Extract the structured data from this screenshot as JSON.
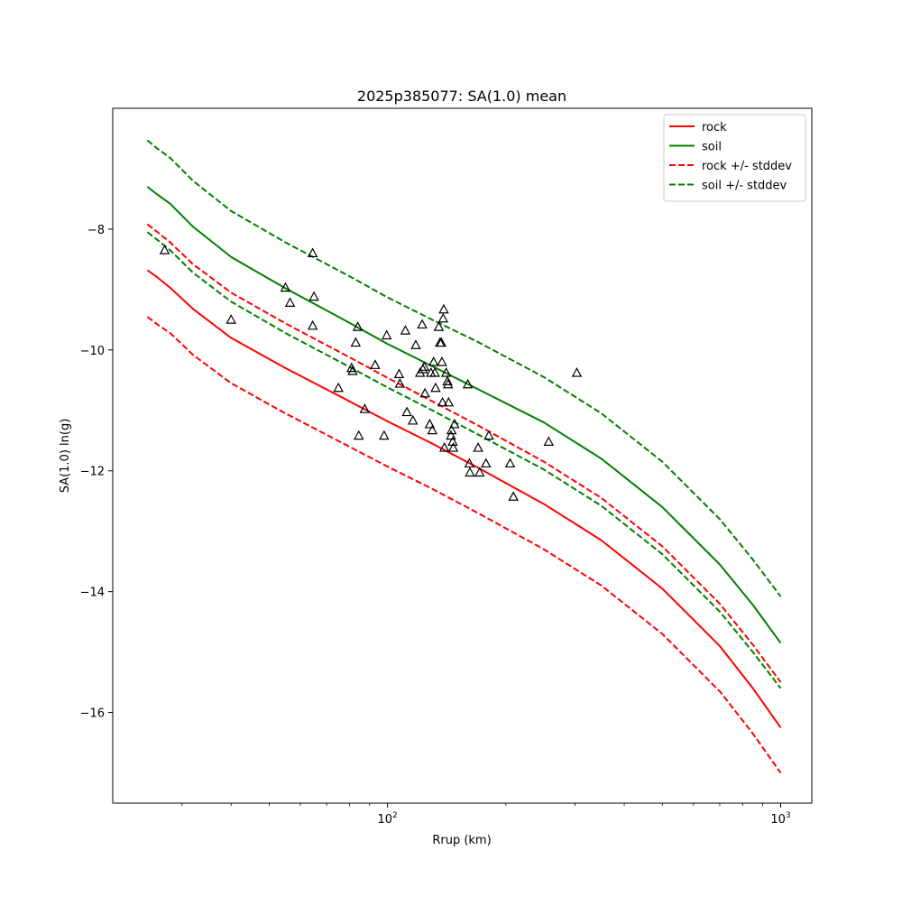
{
  "chart_data": {
    "type": "line",
    "title": "2025p385077: SA(1.0) mean",
    "xlabel": "Rrup (km)",
    "ylabel": "SA(1.0) ln(g)",
    "xscale": "log",
    "xlim": [
      20,
      1200
    ],
    "ylim": [
      -17.5,
      -6.0
    ],
    "grid": false,
    "legend_position": "top-right",
    "x_major_ticks": [
      {
        "value": 100,
        "base": "10",
        "exp": "2"
      },
      {
        "value": 1000,
        "base": "10",
        "exp": "3"
      }
    ],
    "x_minor_ticks": [
      30,
      40,
      50,
      60,
      70,
      80,
      90,
      200,
      300,
      400,
      500,
      600,
      700,
      800,
      900
    ],
    "y_ticks": [
      {
        "value": -8,
        "label": "−8"
      },
      {
        "value": -10,
        "label": "−10"
      },
      {
        "value": -12,
        "label": "−12"
      },
      {
        "value": -14,
        "label": "−14"
      },
      {
        "value": -16,
        "label": "−16"
      }
    ],
    "x": [
      24.5,
      26,
      28,
      32,
      40,
      55,
      80,
      100,
      130,
      170,
      250,
      350,
      500,
      700,
      850,
      1000
    ],
    "series": [
      {
        "name": "rock",
        "color": "#ff0000",
        "dash": "solid",
        "values": [
          -8.68,
          -8.8,
          -8.97,
          -9.32,
          -9.8,
          -10.3,
          -10.85,
          -11.18,
          -11.55,
          -11.95,
          -12.55,
          -13.15,
          -13.95,
          -14.9,
          -15.6,
          -16.25
        ]
      },
      {
        "name": "soil",
        "color": "#008000",
        "dash": "solid",
        "values": [
          -7.3,
          -7.43,
          -7.58,
          -7.96,
          -8.46,
          -8.98,
          -9.55,
          -9.9,
          -10.27,
          -10.65,
          -11.2,
          -11.8,
          -12.6,
          -13.55,
          -14.22,
          -14.85
        ]
      },
      {
        "name": "rock +/- stddev",
        "color": "#ff0000",
        "dash": "dashed",
        "values": [
          -7.92,
          -8.05,
          -8.22,
          -8.58,
          -9.05,
          -9.56,
          -10.12,
          -10.46,
          -10.85,
          -11.25,
          -11.85,
          -12.45,
          -13.25,
          -14.2,
          -14.88,
          -15.5
        ]
      },
      {
        "name": "",
        "color": "#ff0000",
        "dash": "dashed",
        "values": [
          -9.45,
          -9.58,
          -9.72,
          -10.08,
          -10.55,
          -11.05,
          -11.6,
          -11.93,
          -12.3,
          -12.7,
          -13.3,
          -13.9,
          -14.7,
          -15.65,
          -16.35,
          -17.0
        ]
      },
      {
        "name": "soil +/- stddev",
        "color": "#008000",
        "dash": "dashed",
        "values": [
          -6.53,
          -6.67,
          -6.82,
          -7.2,
          -7.7,
          -8.22,
          -8.78,
          -9.13,
          -9.5,
          -9.87,
          -10.45,
          -11.05,
          -11.85,
          -12.8,
          -13.47,
          -14.08
        ]
      },
      {
        "name": "",
        "color": "#008000",
        "dash": "dashed",
        "values": [
          -8.05,
          -8.18,
          -8.35,
          -8.72,
          -9.2,
          -9.72,
          -10.28,
          -10.62,
          -11.0,
          -11.4,
          -11.98,
          -12.58,
          -13.38,
          -14.33,
          -15.0,
          -15.6
        ]
      }
    ],
    "observations": {
      "marker": "open-triangle",
      "color": "#000000",
      "points": [
        [
          27.1,
          -8.35
        ],
        [
          40,
          -9.5
        ],
        [
          55,
          -8.97
        ],
        [
          56.5,
          -9.22
        ],
        [
          64.5,
          -8.4
        ],
        [
          64.5,
          -9.6
        ],
        [
          65,
          -9.12
        ],
        [
          75,
          -10.63
        ],
        [
          81,
          -10.3
        ],
        [
          81.5,
          -10.35
        ],
        [
          83,
          -9.88
        ],
        [
          84,
          -9.62
        ],
        [
          84.5,
          -11.42
        ],
        [
          87.5,
          -10.98
        ],
        [
          93,
          -10.25
        ],
        [
          98,
          -11.42
        ],
        [
          99.5,
          -9.76
        ],
        [
          107,
          -10.4
        ],
        [
          107.5,
          -10.56
        ],
        [
          111,
          -9.68
        ],
        [
          112,
          -11.03
        ],
        [
          116,
          -11.17
        ],
        [
          118,
          -9.92
        ],
        [
          121,
          -10.38
        ],
        [
          122.5,
          -9.58
        ],
        [
          123,
          -10.32
        ],
        [
          124,
          -10.28
        ],
        [
          124.5,
          -10.72
        ],
        [
          128,
          -11.23
        ],
        [
          129,
          -10.38
        ],
        [
          130,
          -11.33
        ],
        [
          131,
          -10.2
        ],
        [
          132,
          -10.38
        ],
        [
          132.5,
          -10.63
        ],
        [
          135,
          -9.62
        ],
        [
          136,
          -9.88
        ],
        [
          137,
          -9.88
        ],
        [
          137.5,
          -10.2
        ],
        [
          138,
          -10.87
        ],
        [
          138.5,
          -9.48
        ],
        [
          139,
          -9.33
        ],
        [
          139.5,
          -11.62
        ],
        [
          141,
          -10.38
        ],
        [
          142,
          -10.52
        ],
        [
          142.5,
          -10.57
        ],
        [
          143,
          -10.87
        ],
        [
          145,
          -11.42
        ],
        [
          145.5,
          -11.33
        ],
        [
          146.5,
          -11.52
        ],
        [
          147,
          -11.62
        ],
        [
          148,
          -11.23
        ],
        [
          160,
          -10.57
        ],
        [
          161.5,
          -11.88
        ],
        [
          162,
          -12.03
        ],
        [
          170,
          -11.62
        ],
        [
          171.5,
          -12.03
        ],
        [
          178,
          -11.88
        ],
        [
          181,
          -11.42
        ],
        [
          205,
          -11.88
        ],
        [
          209,
          -12.43
        ],
        [
          257,
          -11.52
        ],
        [
          303,
          -10.38
        ]
      ]
    }
  }
}
